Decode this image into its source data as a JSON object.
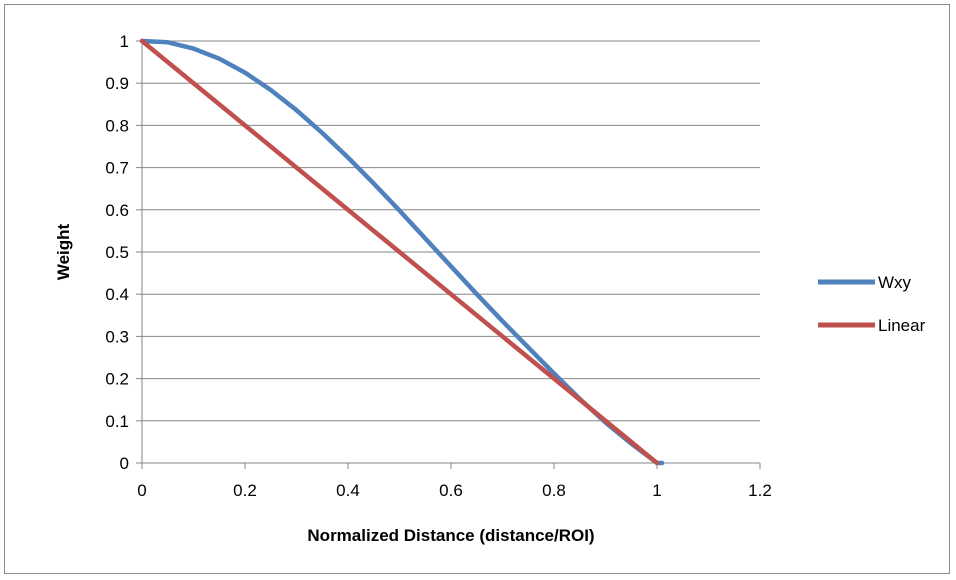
{
  "chart_data": {
    "type": "line",
    "title": "",
    "xlabel": "Normalized Distance (distance/ROI)",
    "ylabel": "Weight",
    "xlim": [
      0,
      1.2
    ],
    "ylim": [
      0,
      1
    ],
    "x_ticks": [
      "0",
      "0.2",
      "0.4",
      "0.6",
      "0.8",
      "1",
      "1.2"
    ],
    "y_ticks": [
      "0",
      "0.1",
      "0.2",
      "0.3",
      "0.4",
      "0.5",
      "0.6",
      "0.7",
      "0.8",
      "0.9",
      "1"
    ],
    "grid": "horizontal",
    "legend_position": "right",
    "series": [
      {
        "name": "Wxy",
        "color": "#4f81bd",
        "x": [
          0,
          0.05,
          0.1,
          0.15,
          0.2,
          0.25,
          0.3,
          0.35,
          0.4,
          0.45,
          0.5,
          0.55,
          0.6,
          0.65,
          0.7,
          0.75,
          0.8,
          0.85,
          0.9,
          0.95,
          1.0,
          1.01
        ],
        "y": [
          1,
          0.997,
          0.982,
          0.958,
          0.925,
          0.884,
          0.836,
          0.782,
          0.724,
          0.662,
          0.598,
          0.532,
          0.466,
          0.4,
          0.336,
          0.274,
          0.212,
          0.152,
          0.096,
          0.046,
          0.0,
          0.0
        ]
      },
      {
        "name": "Linear",
        "color": "#c0504d",
        "x": [
          0,
          1
        ],
        "y": [
          1,
          0
        ]
      }
    ]
  }
}
